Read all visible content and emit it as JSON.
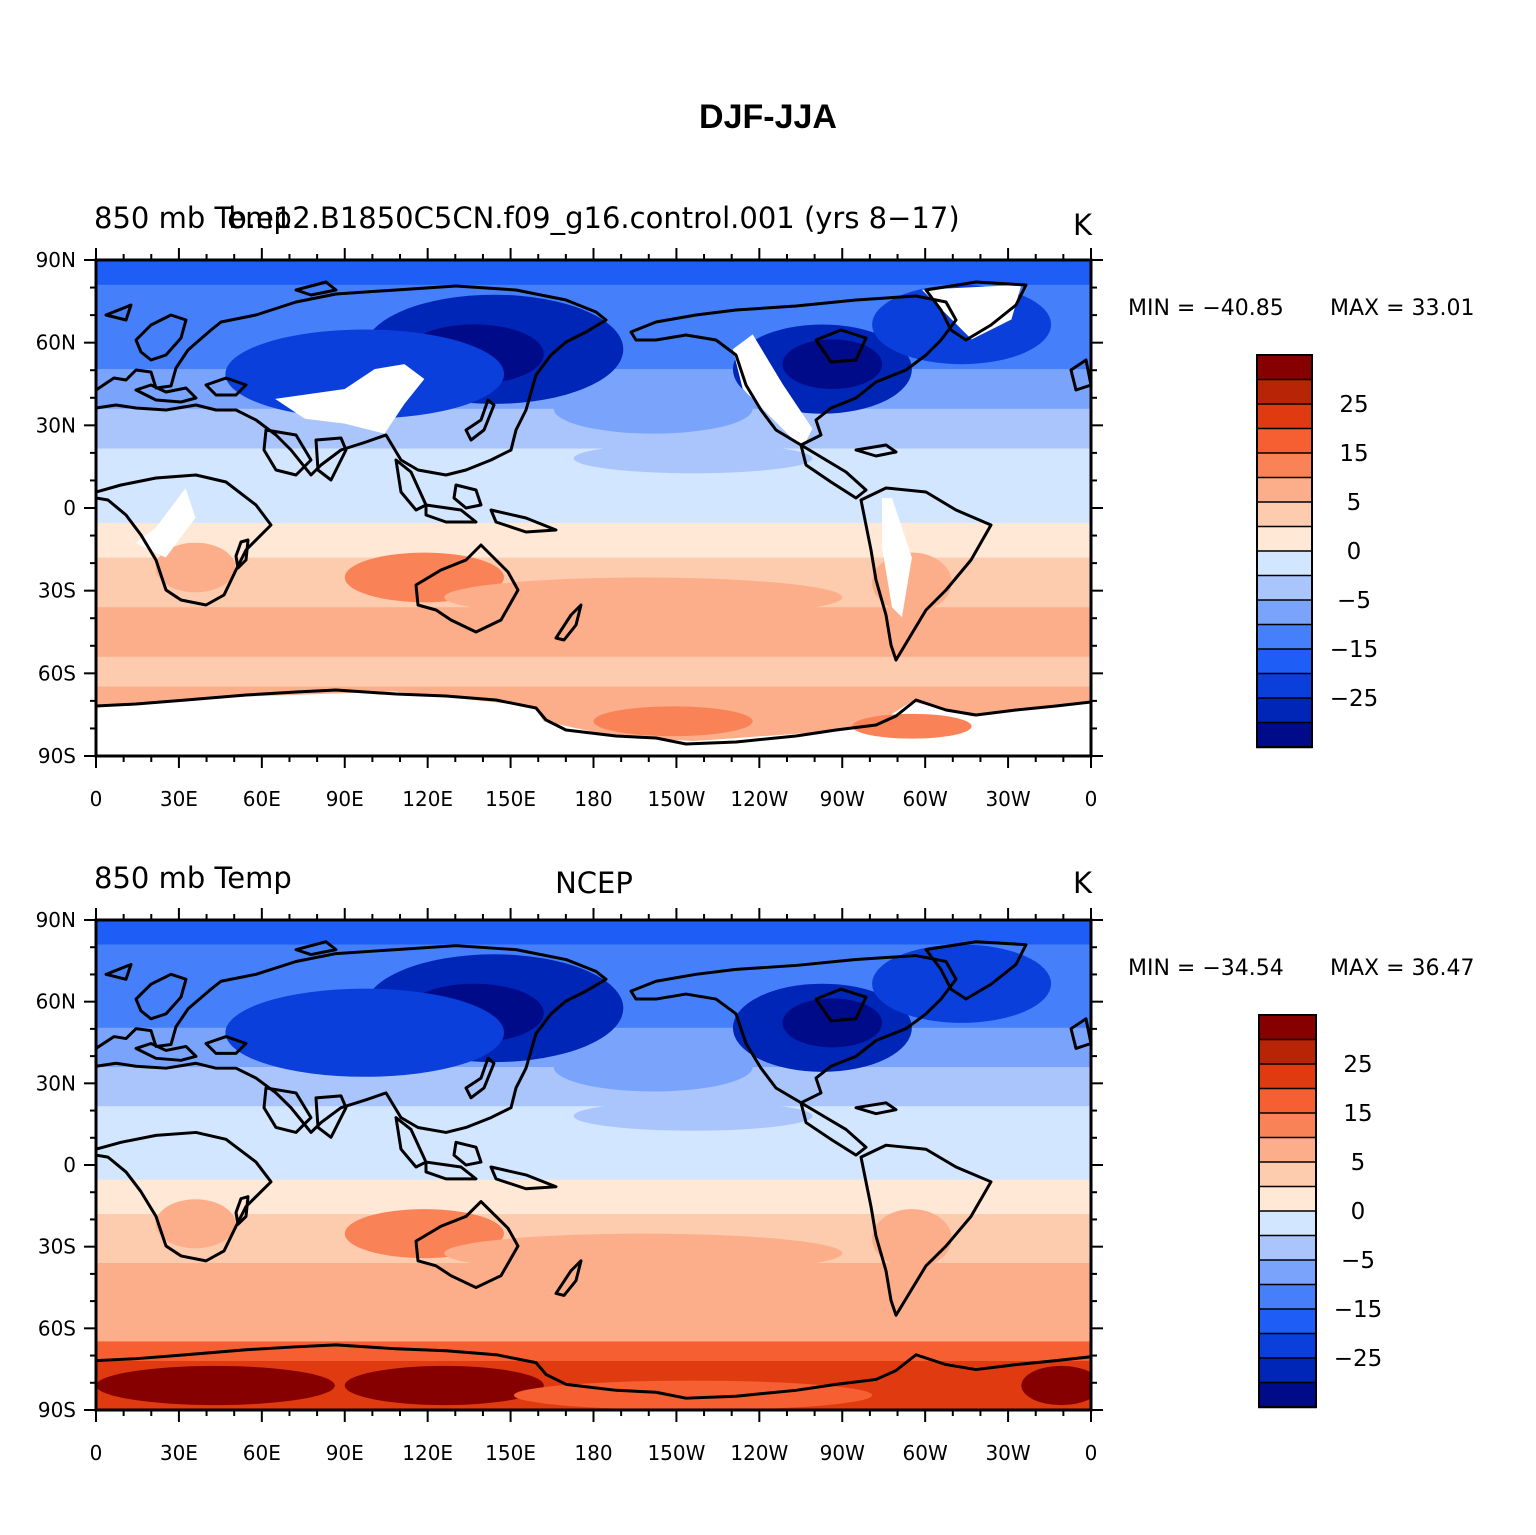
{
  "figure": {
    "title": "DJF-JJA"
  },
  "colors": {
    "scale": [
      "#000b8a",
      "#0026b8",
      "#0a3fdc",
      "#1f5ef6",
      "#4580fa",
      "#7aa4fb",
      "#aac5fc",
      "#d3e6ff",
      "#ffe8d6",
      "#fdcbae",
      "#fcae8a",
      "#f98257",
      "#f55f31",
      "#e03b10",
      "#b72406",
      "#870000"
    ],
    "land": "#000000",
    "missing": "#ffffff"
  },
  "axes": {
    "x_ticks": [
      "0",
      "30E",
      "60E",
      "90E",
      "120E",
      "150E",
      "180",
      "150W",
      "120W",
      "90W",
      "60W",
      "30W",
      "0"
    ],
    "y_ticks": [
      "90N",
      "60N",
      "30N",
      "0",
      "30S",
      "60S",
      "90S"
    ]
  },
  "colorbar": {
    "labels": [
      "25",
      "15",
      "5",
      "0",
      "−5",
      "−15",
      "−25"
    ]
  },
  "panels": [
    {
      "left_label": "850 mb Temp",
      "center_label": "b.e12.B1850C5CN.f09_g16.control.001 (yrs 8−17)",
      "right_label": "K",
      "min_label": "MIN = −40.85",
      "max_label": "MAX =   33.01",
      "missing_regions": [
        "tibet",
        "rockies",
        "greenland",
        "antarctica",
        "east-africa"
      ]
    },
    {
      "left_label": "850 mb Temp",
      "center_label": "NCEP",
      "right_label": "K",
      "min_label": "MIN = −34.54",
      "max_label": "MAX =   36.47",
      "missing_regions": []
    }
  ]
}
